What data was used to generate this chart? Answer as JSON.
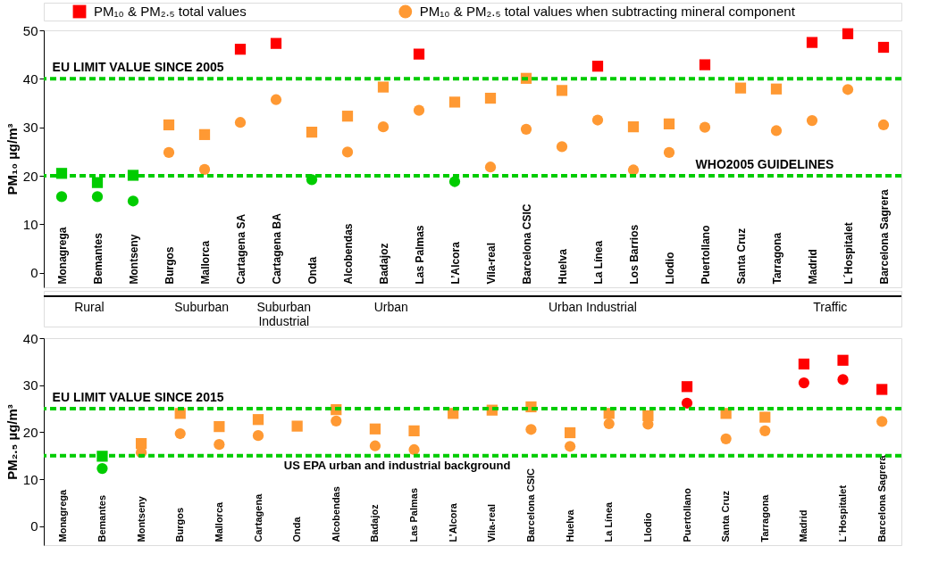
{
  "chart_data": [
    {
      "type": "scatter",
      "ylabel": "PM₁₀ µg/m³",
      "ylim": [
        -3,
        50
      ],
      "yticks": [
        0,
        10,
        20,
        30,
        40,
        50
      ],
      "grid": false,
      "legend": "top",
      "categories": [
        "Monagrega",
        "Bemantes",
        "Montseny",
        "Burgos",
        "Mallorca",
        "Cartagena SA",
        "Cartagena BA",
        "Onda",
        "Alcobendas",
        "Badajoz",
        "Las Palmas",
        "L’Alcora",
        "Vila-real",
        "Barcelona CSIC",
        "Huelva",
        "La Línea",
        "Los Barrios",
        "Llodio",
        "Puertollano",
        "Santa Cruz",
        "Tarragona",
        "Madrid",
        "L´Hospitalet",
        "Barcelona Sagrera"
      ],
      "series": [
        {
          "name": "PM₁₀ & PM₂.₅ total values",
          "color": "#ff0000",
          "marker": "square",
          "values": [
            20.5,
            18.6,
            20.1,
            30.5,
            28.5,
            46.1,
            47.3,
            29.0,
            32.3,
            38.3,
            45.1,
            35.2,
            36.0,
            40.1,
            37.6,
            42.6,
            30.1,
            30.7,
            42.9,
            38.1,
            37.9,
            47.5,
            49.3,
            46.5
          ],
          "colors": [
            "#00cc00",
            "#00cc00",
            "#00cc00",
            "#ff9933",
            "#ff9933",
            "#ff0000",
            "#ff0000",
            "#ff9933",
            "#ff9933",
            "#ff9933",
            "#ff0000",
            "#ff9933",
            "#ff9933",
            "#ff9933",
            "#ff9933",
            "#ff0000",
            "#ff9933",
            "#ff9933",
            "#ff0000",
            "#ff9933",
            "#ff9933",
            "#ff0000",
            "#ff0000",
            "#ff0000"
          ]
        },
        {
          "name": "PM₁₀ & PM₂.₅ total values when subtracting mineral component",
          "color": "#ff9933",
          "marker": "circle",
          "values": [
            15.7,
            15.7,
            14.8,
            24.8,
            21.3,
            31.0,
            35.7,
            19.2,
            24.9,
            30.1,
            33.5,
            18.8,
            21.8,
            29.6,
            26.0,
            31.5,
            21.2,
            24.8,
            30.0,
            null,
            29.3,
            31.4,
            37.8,
            30.5
          ],
          "colors": [
            "#00cc00",
            "#00cc00",
            "#00cc00",
            "#ff9933",
            "#ff9933",
            "#ff9933",
            "#ff9933",
            "#00cc00",
            "#ff9933",
            "#ff9933",
            "#ff9933",
            "#00cc00",
            "#ff9933",
            "#ff9933",
            "#ff9933",
            "#ff9933",
            "#ff9933",
            "#ff9933",
            "#ff9933",
            null,
            "#ff9933",
            "#ff9933",
            "#ff9933",
            "#ff9933"
          ]
        }
      ],
      "ref_lines": [
        {
          "axis": "y",
          "value": 40,
          "label": "EU LIMIT VALUE SINCE 2005",
          "color": "#00cc00",
          "line_style": "dashed"
        },
        {
          "axis": "y",
          "value": 20,
          "label": "WHO2005 GUIDELINES",
          "color": "#00cc00",
          "line_style": "dashed"
        }
      ]
    },
    {
      "type": "scatter",
      "ylabel": "PM₂.₅ µg/m³",
      "ylim": [
        -4,
        40
      ],
      "yticks": [
        0,
        10,
        20,
        30,
        40
      ],
      "grid": false,
      "legend": false,
      "categories": [
        "Monagrega",
        "Bemantes",
        "Montseny",
        "Burgos",
        "Mallorca",
        "Cartagena",
        "Onda",
        "Alcobendas",
        "Badajoz",
        "Las Palmas",
        "L’Alcora",
        "Vila-real",
        "Barcelona CSIC",
        "Huelva",
        "La Línea",
        "Llodio",
        "Puertollano",
        "Santa Cruz",
        "Tarragona",
        "Madrid",
        "L´Hospitalet",
        "Barcelona Sagrera"
      ],
      "series": [
        {
          "marker": "square",
          "values": [
            null,
            14.9,
            17.6,
            24.0,
            21.2,
            22.7,
            21.3,
            24.8,
            20.7,
            20.3,
            24.0,
            24.7,
            25.4,
            19.9,
            24.0,
            23.5,
            29.7,
            24.0,
            23.2,
            34.5,
            35.3,
            29.1
          ],
          "colors": [
            null,
            "#00cc00",
            "#ff9933",
            "#ff9933",
            "#ff9933",
            "#ff9933",
            "#ff9933",
            "#ff9933",
            "#ff9933",
            "#ff9933",
            "#ff9933",
            "#ff9933",
            "#ff9933",
            "#ff9933",
            "#ff9933",
            "#ff9933",
            "#ff0000",
            "#ff9933",
            "#ff9933",
            "#ff0000",
            "#ff0000",
            "#ff0000"
          ]
        },
        {
          "marker": "circle",
          "values": [
            null,
            12.3,
            15.7,
            19.7,
            17.4,
            19.3,
            null,
            22.4,
            17.1,
            16.3,
            null,
            null,
            20.6,
            17.0,
            21.8,
            21.7,
            26.2,
            18.6,
            20.3,
            30.5,
            31.2,
            22.3
          ],
          "colors": [
            null,
            "#00cc00",
            "#ff9933",
            "#ff9933",
            "#ff9933",
            "#ff9933",
            null,
            "#ff9933",
            "#ff9933",
            "#ff9933",
            null,
            null,
            "#ff9933",
            "#ff9933",
            "#ff9933",
            "#ff9933",
            "#ff0000",
            "#ff9933",
            "#ff9933",
            "#ff0000",
            "#ff0000",
            "#ff9933"
          ]
        }
      ],
      "ref_lines": [
        {
          "axis": "y",
          "value": 25,
          "label": "EU LIMIT VALUE SINCE 2015",
          "color": "#00cc00",
          "line_style": "dashed"
        },
        {
          "axis": "y",
          "value": 15,
          "label": "US EPA urban and industrial background",
          "color": "#00cc00",
          "line_style": "dashed"
        }
      ],
      "annotations": [
        "Rural",
        "Suburban",
        "Suburban\nIndustrial",
        "Urban",
        "Urban Industrial",
        "Traffic"
      ]
    }
  ]
}
